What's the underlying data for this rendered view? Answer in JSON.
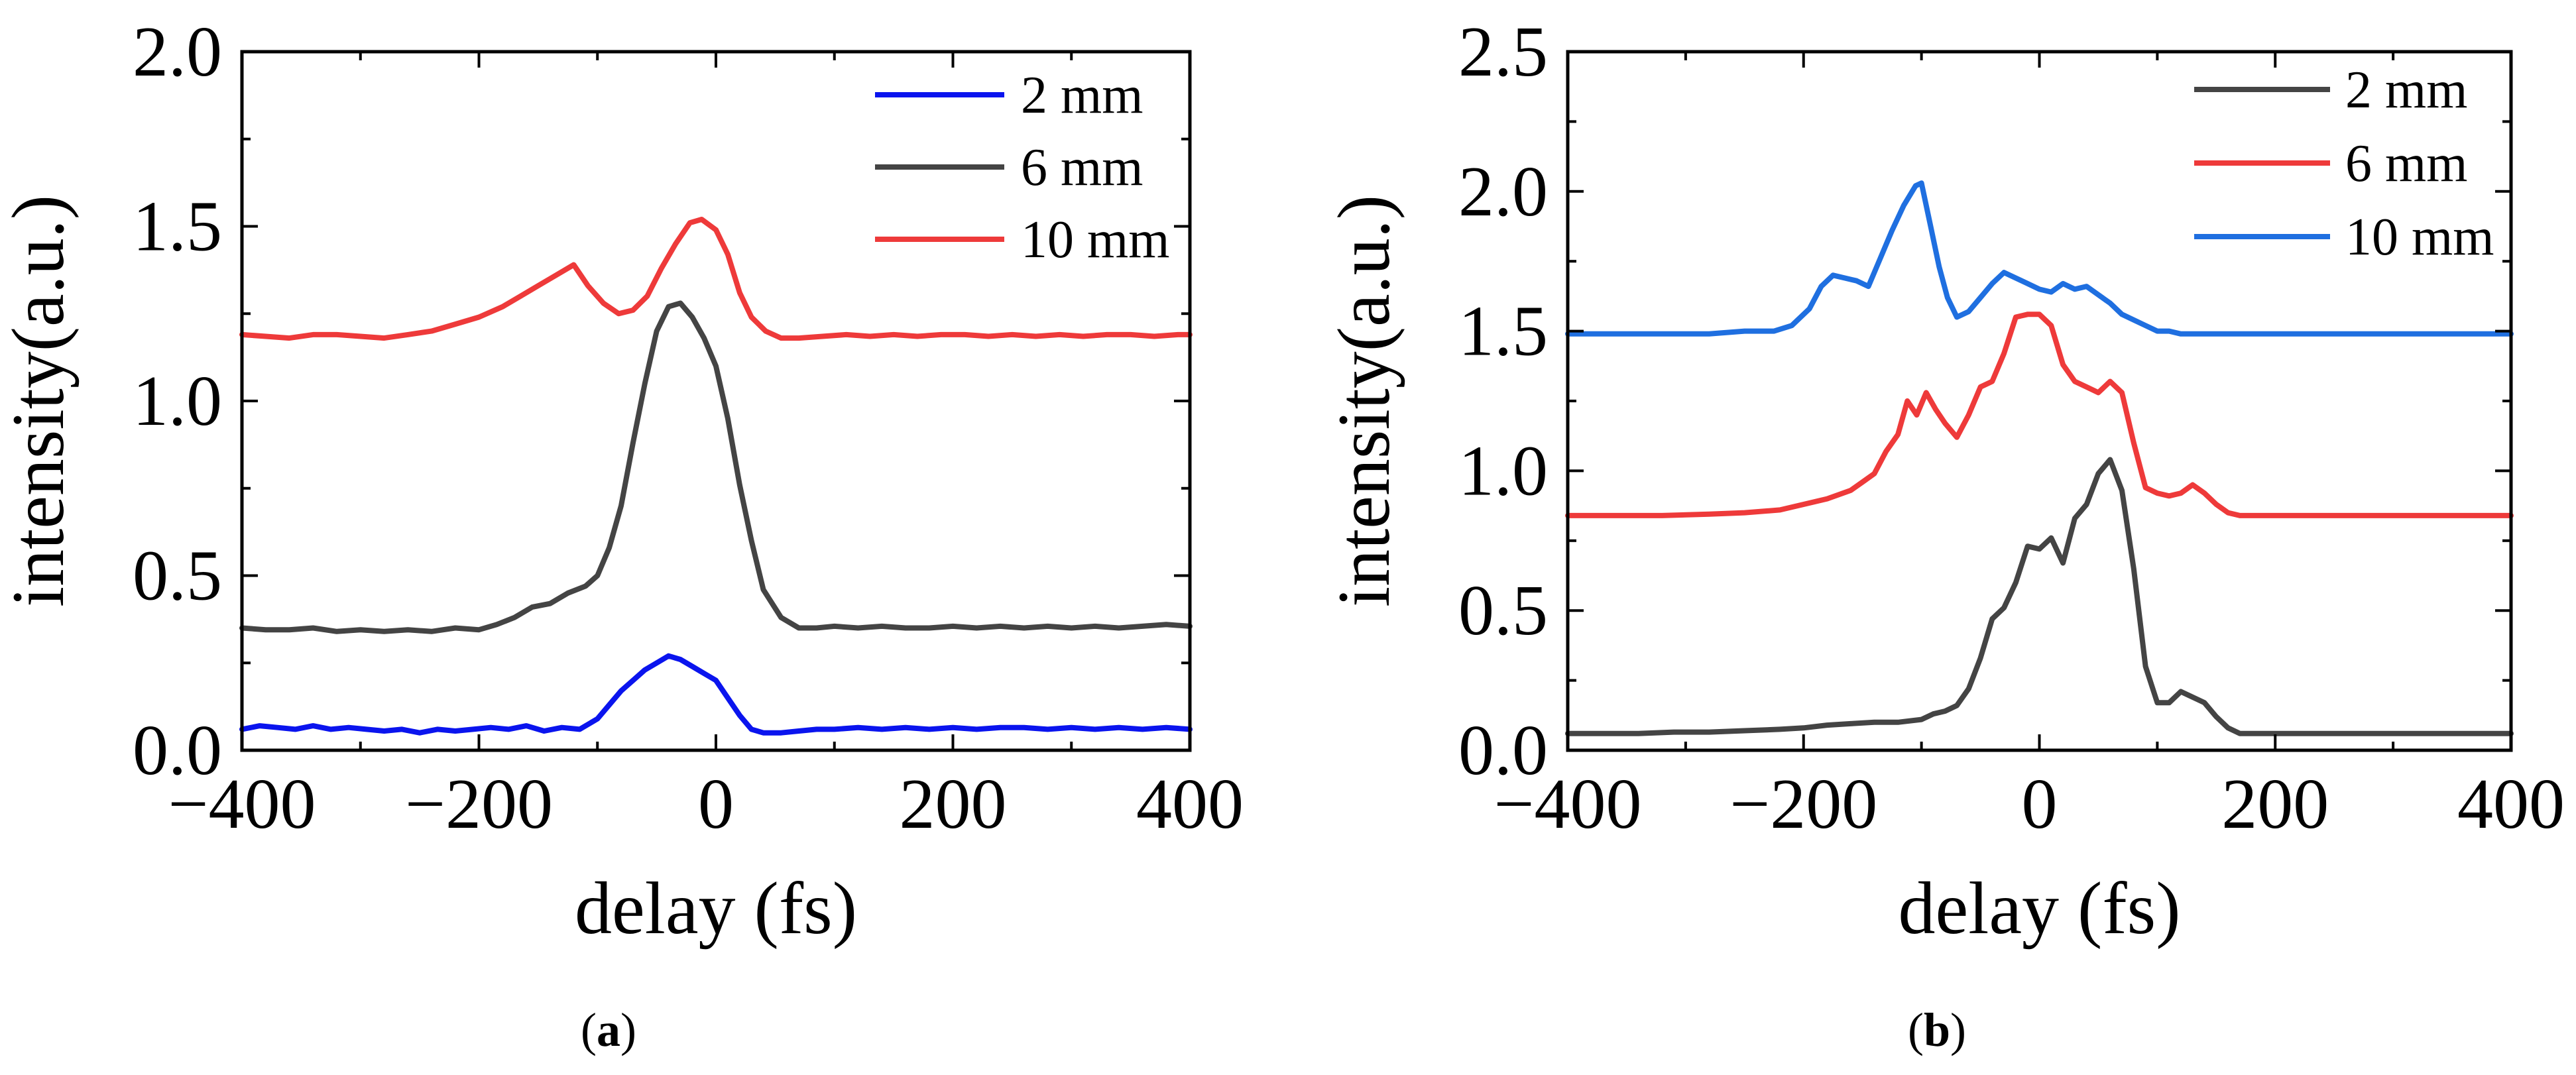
{
  "figure": {
    "panels": [
      {
        "caption_open": "(",
        "caption_letter": "a",
        "caption_close": ")"
      },
      {
        "caption_open": "(",
        "caption_letter": "b",
        "caption_close": ")"
      }
    ]
  },
  "chart_data": [
    {
      "type": "line",
      "panel": "a",
      "title": "",
      "xlabel": "delay (fs)",
      "ylabel": "intensity(a.u.)",
      "xlim": [
        -400,
        400
      ],
      "ylim": [
        0,
        2.0
      ],
      "xticks": [
        -400,
        -200,
        0,
        200,
        400
      ],
      "xtick_labels": [
        "−400",
        "−200",
        "0",
        "200",
        "400"
      ],
      "yticks": [
        0,
        0.5,
        1.0,
        1.5,
        2.0
      ],
      "ytick_labels": [
        "0.0",
        "0.5",
        "1.0",
        "1.5",
        "2.0"
      ],
      "grid": false,
      "legend_position": "top-right",
      "series": [
        {
          "name": "2 mm",
          "color": "#0a14ee",
          "x": [
            -400,
            -385,
            -370,
            -355,
            -340,
            -325,
            -310,
            -295,
            -280,
            -265,
            -250,
            -235,
            -220,
            -205,
            -190,
            -175,
            -160,
            -145,
            -130,
            -115,
            -100,
            -90,
            -80,
            -70,
            -60,
            -50,
            -40,
            -30,
            -20,
            -10,
            0,
            10,
            20,
            30,
            40,
            55,
            70,
            85,
            100,
            120,
            140,
            160,
            180,
            200,
            220,
            240,
            260,
            280,
            300,
            320,
            340,
            360,
            380,
            400
          ],
          "y": [
            0.06,
            0.07,
            0.065,
            0.06,
            0.07,
            0.06,
            0.065,
            0.06,
            0.055,
            0.06,
            0.05,
            0.06,
            0.055,
            0.06,
            0.065,
            0.06,
            0.07,
            0.055,
            0.065,
            0.06,
            0.09,
            0.13,
            0.17,
            0.2,
            0.23,
            0.25,
            0.27,
            0.26,
            0.24,
            0.22,
            0.2,
            0.15,
            0.1,
            0.06,
            0.05,
            0.05,
            0.055,
            0.06,
            0.06,
            0.065,
            0.06,
            0.065,
            0.06,
            0.065,
            0.06,
            0.065,
            0.065,
            0.06,
            0.065,
            0.06,
            0.065,
            0.06,
            0.065,
            0.06
          ]
        },
        {
          "name": "6 mm",
          "color": "#444444",
          "x": [
            -400,
            -380,
            -360,
            -340,
            -320,
            -300,
            -280,
            -260,
            -240,
            -220,
            -200,
            -185,
            -170,
            -155,
            -140,
            -125,
            -110,
            -100,
            -90,
            -80,
            -70,
            -60,
            -50,
            -40,
            -30,
            -20,
            -10,
            0,
            10,
            20,
            30,
            40,
            55,
            70,
            85,
            100,
            120,
            140,
            160,
            180,
            200,
            220,
            240,
            260,
            280,
            300,
            320,
            340,
            360,
            380,
            400
          ],
          "y": [
            0.35,
            0.345,
            0.345,
            0.35,
            0.34,
            0.345,
            0.34,
            0.345,
            0.34,
            0.35,
            0.345,
            0.36,
            0.38,
            0.41,
            0.42,
            0.45,
            0.47,
            0.5,
            0.58,
            0.7,
            0.88,
            1.05,
            1.2,
            1.27,
            1.28,
            1.24,
            1.18,
            1.1,
            0.95,
            0.76,
            0.6,
            0.46,
            0.38,
            0.35,
            0.35,
            0.355,
            0.35,
            0.355,
            0.35,
            0.35,
            0.355,
            0.35,
            0.355,
            0.35,
            0.355,
            0.35,
            0.355,
            0.35,
            0.355,
            0.36,
            0.355
          ]
        },
        {
          "name": "10 mm",
          "color": "#ee3a3a",
          "x": [
            -400,
            -380,
            -360,
            -340,
            -320,
            -300,
            -280,
            -260,
            -240,
            -220,
            -200,
            -180,
            -165,
            -150,
            -135,
            -120,
            -108,
            -95,
            -82,
            -70,
            -58,
            -46,
            -34,
            -22,
            -12,
            0,
            10,
            20,
            30,
            42,
            55,
            70,
            90,
            110,
            130,
            150,
            170,
            190,
            210,
            230,
            250,
            270,
            290,
            310,
            330,
            350,
            370,
            390,
            400
          ],
          "y": [
            1.19,
            1.185,
            1.18,
            1.19,
            1.19,
            1.185,
            1.18,
            1.19,
            1.2,
            1.22,
            1.24,
            1.27,
            1.3,
            1.33,
            1.36,
            1.39,
            1.33,
            1.28,
            1.25,
            1.26,
            1.3,
            1.38,
            1.45,
            1.51,
            1.52,
            1.49,
            1.42,
            1.31,
            1.24,
            1.2,
            1.18,
            1.18,
            1.185,
            1.19,
            1.185,
            1.19,
            1.185,
            1.19,
            1.19,
            1.185,
            1.19,
            1.185,
            1.19,
            1.185,
            1.19,
            1.19,
            1.185,
            1.19,
            1.19
          ]
        }
      ]
    },
    {
      "type": "line",
      "panel": "b",
      "title": "",
      "xlabel": "delay (fs)",
      "ylabel": "intensity(a.u.)",
      "xlim": [
        -400,
        400
      ],
      "ylim": [
        0,
        2.5
      ],
      "xticks": [
        -400,
        -200,
        0,
        200,
        400
      ],
      "xtick_labels": [
        "−400",
        "−200",
        "0",
        "200",
        "400"
      ],
      "yticks": [
        0,
        0.5,
        1.0,
        1.5,
        2.0,
        2.5
      ],
      "ytick_labels": [
        "0.0",
        "0.5",
        "1.0",
        "1.5",
        "2.0",
        "2.5"
      ],
      "grid": false,
      "legend_position": "top-right",
      "series": [
        {
          "name": "2 mm",
          "color": "#444444",
          "x": [
            -400,
            -370,
            -340,
            -310,
            -280,
            -250,
            -220,
            -200,
            -180,
            -160,
            -140,
            -120,
            -100,
            -90,
            -80,
            -70,
            -60,
            -50,
            -40,
            -30,
            -20,
            -10,
            0,
            10,
            20,
            30,
            40,
            50,
            60,
            70,
            80,
            90,
            100,
            110,
            120,
            130,
            140,
            150,
            160,
            170,
            180,
            200,
            230,
            260,
            300,
            340,
            380,
            400
          ],
          "y": [
            0.06,
            0.06,
            0.06,
            0.065,
            0.065,
            0.07,
            0.075,
            0.08,
            0.09,
            0.095,
            0.1,
            0.1,
            0.11,
            0.13,
            0.14,
            0.16,
            0.22,
            0.33,
            0.47,
            0.51,
            0.6,
            0.73,
            0.72,
            0.76,
            0.67,
            0.83,
            0.88,
            0.99,
            1.04,
            0.93,
            0.65,
            0.3,
            0.17,
            0.17,
            0.21,
            0.19,
            0.17,
            0.12,
            0.08,
            0.06,
            0.06,
            0.06,
            0.06,
            0.06,
            0.06,
            0.06,
            0.06,
            0.06
          ]
        },
        {
          "name": "6 mm",
          "color": "#ee3a3a",
          "x": [
            -400,
            -360,
            -320,
            -280,
            -250,
            -220,
            -200,
            -180,
            -160,
            -150,
            -140,
            -130,
            -120,
            -112,
            -104,
            -96,
            -88,
            -80,
            -70,
            -60,
            -50,
            -40,
            -30,
            -20,
            -10,
            0,
            10,
            20,
            30,
            40,
            50,
            60,
            70,
            80,
            90,
            100,
            110,
            120,
            130,
            140,
            150,
            160,
            170,
            180,
            200,
            240,
            280,
            320,
            360,
            400
          ],
          "y": [
            0.84,
            0.84,
            0.84,
            0.845,
            0.85,
            0.86,
            0.88,
            0.9,
            0.93,
            0.96,
            0.99,
            1.07,
            1.13,
            1.25,
            1.2,
            1.28,
            1.22,
            1.17,
            1.12,
            1.2,
            1.3,
            1.32,
            1.42,
            1.55,
            1.56,
            1.56,
            1.52,
            1.38,
            1.32,
            1.3,
            1.28,
            1.32,
            1.28,
            1.1,
            0.94,
            0.92,
            0.91,
            0.92,
            0.95,
            0.92,
            0.88,
            0.85,
            0.84,
            0.84,
            0.84,
            0.84,
            0.84,
            0.84,
            0.84,
            0.84
          ]
        },
        {
          "name": "10 mm",
          "color": "#1f6fe0",
          "x": [
            -400,
            -360,
            -320,
            -280,
            -250,
            -225,
            -210,
            -195,
            -185,
            -175,
            -165,
            -155,
            -145,
            -135,
            -125,
            -115,
            -105,
            -100,
            -92,
            -85,
            -78,
            -70,
            -60,
            -50,
            -40,
            -30,
            -20,
            -10,
            0,
            10,
            20,
            30,
            40,
            50,
            60,
            70,
            80,
            90,
            100,
            110,
            120,
            140,
            160,
            180,
            200,
            240,
            280,
            320,
            360,
            400
          ],
          "y": [
            1.49,
            1.49,
            1.49,
            1.49,
            1.5,
            1.5,
            1.52,
            1.58,
            1.66,
            1.7,
            1.69,
            1.68,
            1.66,
            1.76,
            1.86,
            1.95,
            2.02,
            2.03,
            1.87,
            1.73,
            1.62,
            1.55,
            1.57,
            1.62,
            1.67,
            1.71,
            1.69,
            1.67,
            1.65,
            1.64,
            1.67,
            1.65,
            1.66,
            1.63,
            1.6,
            1.56,
            1.54,
            1.52,
            1.5,
            1.5,
            1.49,
            1.49,
            1.49,
            1.49,
            1.49,
            1.49,
            1.49,
            1.49,
            1.49,
            1.49
          ]
        }
      ]
    }
  ]
}
